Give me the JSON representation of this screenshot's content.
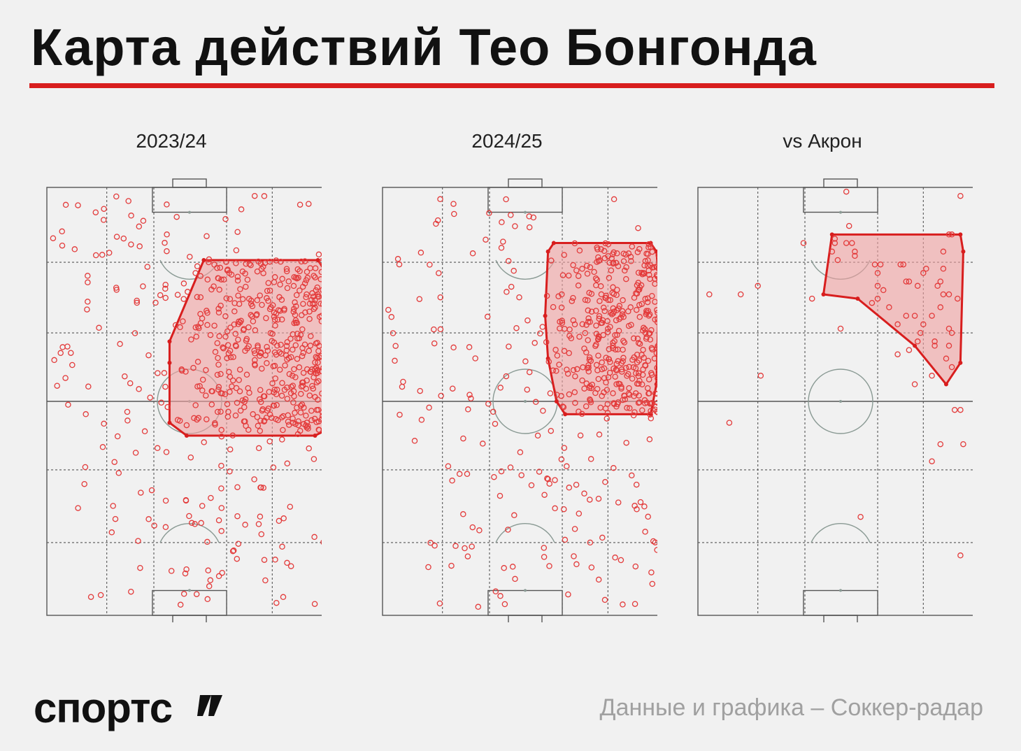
{
  "header": {
    "title": "Карта действий Тео Бонгонда"
  },
  "colors": {
    "accent": "#d81e1e",
    "point": "#e33b3b",
    "hull_fill": "#f0a0a0",
    "pitch_line": "#555555",
    "background": "#f1f1f1"
  },
  "footer": {
    "logo": "спортс",
    "logo_mark": "slash-quote-mark",
    "credit": "Данные и графика – Соккер-радар"
  },
  "chart_data": [
    {
      "type": "scatter",
      "title": "2023/24",
      "xlabel": "",
      "ylabel": "",
      "xlim": [
        0,
        100
      ],
      "ylim": [
        0,
        100
      ],
      "hull": [
        [
          43,
          64
        ],
        [
          55,
          83
        ],
        [
          95,
          83
        ],
        [
          97,
          81
        ],
        [
          97,
          43
        ],
        [
          94,
          42
        ],
        [
          49,
          42
        ],
        [
          43,
          45
        ],
        [
          43,
          59
        ]
      ],
      "points_dense_region": [
        [
          45,
          43
        ],
        [
          97,
          83
        ]
      ],
      "points_count": 620
    },
    {
      "type": "scatter",
      "title": "2024/25",
      "xlabel": "",
      "ylabel": "",
      "xlim": [
        0,
        100
      ],
      "ylim": [
        0,
        100
      ],
      "hull": [
        [
          58,
          85
        ],
        [
          60,
          87
        ],
        [
          94,
          87
        ],
        [
          96,
          85
        ],
        [
          97,
          78
        ],
        [
          96,
          54
        ],
        [
          94,
          47
        ],
        [
          64,
          47
        ],
        [
          61,
          50
        ],
        [
          58,
          60
        ],
        [
          57,
          70
        ]
      ],
      "points_dense_region": [
        [
          58,
          47
        ],
        [
          97,
          87
        ]
      ],
      "points_count": 560
    },
    {
      "type": "scatter",
      "title": "vs Акрон",
      "xlabel": "",
      "ylabel": "",
      "xlim": [
        0,
        100
      ],
      "ylim": [
        0,
        100
      ],
      "hull": [
        [
          47,
          89
        ],
        [
          92,
          89
        ],
        [
          93,
          85
        ],
        [
          92,
          59
        ],
        [
          87,
          54
        ],
        [
          76,
          63
        ],
        [
          56,
          74
        ],
        [
          44,
          75
        ]
      ],
      "points": [
        [
          4,
          75
        ],
        [
          15,
          75
        ],
        [
          21,
          77
        ],
        [
          22,
          56
        ],
        [
          11,
          45
        ],
        [
          37,
          87
        ],
        [
          53,
          91
        ],
        [
          48,
          87
        ],
        [
          52,
          87
        ],
        [
          54,
          87
        ],
        [
          55,
          85
        ],
        [
          47,
          85
        ],
        [
          49,
          83
        ],
        [
          55,
          84
        ],
        [
          62,
          82
        ],
        [
          63,
          80
        ],
        [
          64,
          82
        ],
        [
          63,
          77
        ],
        [
          71,
          82
        ],
        [
          74,
          78
        ],
        [
          77,
          77
        ],
        [
          80,
          81
        ],
        [
          86,
          85
        ],
        [
          88,
          89
        ],
        [
          89,
          89
        ],
        [
          86,
          81
        ],
        [
          84,
          77
        ],
        [
          86,
          75
        ],
        [
          88,
          75
        ],
        [
          85,
          72
        ],
        [
          82,
          70
        ],
        [
          79,
          68
        ],
        [
          76,
          70
        ],
        [
          73,
          70
        ],
        [
          77,
          64
        ],
        [
          78,
          66
        ],
        [
          83,
          64
        ],
        [
          87,
          60
        ],
        [
          88,
          67
        ],
        [
          89,
          66
        ],
        [
          82,
          56
        ],
        [
          76,
          54
        ],
        [
          70,
          61
        ],
        [
          63,
          74
        ],
        [
          65,
          76
        ],
        [
          72,
          82
        ],
        [
          73,
          78
        ],
        [
          67,
          72
        ],
        [
          40,
          74
        ],
        [
          50,
          67
        ],
        [
          61,
          73
        ],
        [
          70,
          68
        ],
        [
          74,
          62
        ],
        [
          88,
          63
        ],
        [
          89,
          58
        ],
        [
          83,
          63
        ],
        [
          91,
          74
        ],
        [
          85,
          78
        ],
        [
          79,
          80
        ],
        [
          90,
          48
        ],
        [
          92,
          48
        ],
        [
          85,
          40
        ],
        [
          82,
          36
        ],
        [
          93,
          40
        ],
        [
          57,
          23
        ],
        [
          92,
          14
        ],
        [
          48,
          88
        ],
        [
          98,
          98
        ],
        [
          92,
          98
        ],
        [
          52,
          99
        ]
      ]
    }
  ]
}
